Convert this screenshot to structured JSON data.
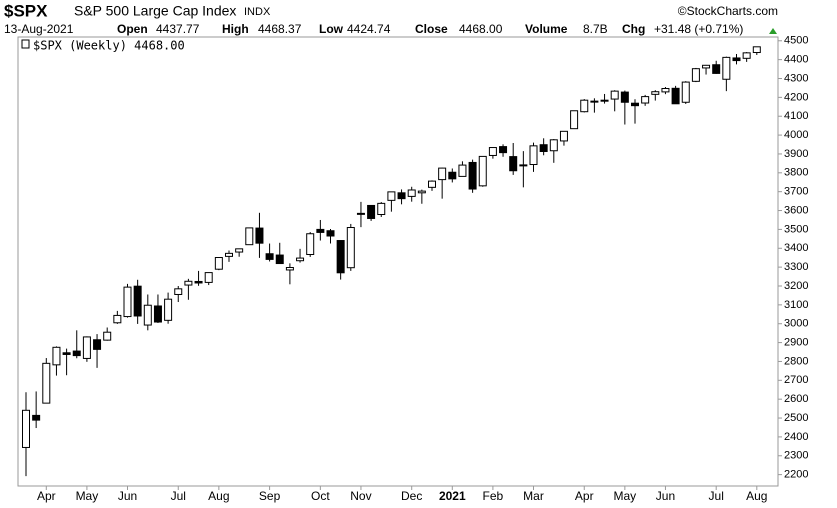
{
  "header": {
    "symbol": "$SPX",
    "name": "S&P 500 Large Cap Index",
    "exchange": "INDX",
    "copyright": "©StockCharts.com",
    "date": "13-Aug-2021",
    "open_label": "Open",
    "open": "4437.77",
    "high_label": "High",
    "high": "4468.37",
    "low_label": "Low",
    "low": "4424.74",
    "close_label": "Close",
    "close": "4468.00",
    "volume_label": "Volume",
    "volume": "8.7B",
    "chg_label": "Chg",
    "chg": "+31.48 (+0.71%)"
  },
  "chart_data": {
    "type": "candlestick",
    "legend": "$SPX (Weekly) 4468.00",
    "categories": [
      null,
      null,
      "Apr",
      null,
      null,
      null,
      "May",
      null,
      null,
      null,
      "Jun",
      null,
      null,
      null,
      null,
      "Jul",
      null,
      null,
      null,
      "Aug",
      null,
      null,
      null,
      null,
      "Sep",
      null,
      null,
      null,
      null,
      "Oct",
      null,
      null,
      null,
      "Nov",
      null,
      null,
      null,
      null,
      "Dec",
      null,
      null,
      null,
      "2021",
      null,
      null,
      null,
      "Feb",
      null,
      null,
      null,
      "Mar",
      null,
      null,
      null,
      null,
      "Apr",
      null,
      null,
      null,
      "May",
      null,
      null,
      null,
      "Jun",
      null,
      null,
      null,
      null,
      "Jul",
      null,
      null,
      null,
      "Aug"
    ],
    "open": [
      2344,
      2514,
      2579,
      2782,
      2846,
      2855,
      2816,
      2915,
      2913,
      3005,
      3038,
      3199,
      2993,
      3094,
      3018,
      3155,
      3205,
      3224,
      3219,
      3289,
      3357,
      3380,
      3419,
      3507,
      3371,
      3364,
      3285,
      3334,
      3367,
      3500,
      3493,
      3441,
      3297,
      3583,
      3627,
      3579,
      3654,
      3694,
      3675,
      3694,
      3723,
      3764,
      3803,
      3781,
      3855,
      3731,
      3892,
      3939,
      3886,
      3842,
      3844,
      3949,
      3917,
      3969,
      4034,
      4124,
      4179,
      4185,
      4191,
      4228,
      4169,
      4170,
      4216,
      4229,
      4248,
      4174,
      4285,
      4356,
      4373,
      4296,
      4409,
      4407,
      4437.77
    ],
    "high": [
      2637,
      2641,
      2818,
      2880,
      2868,
      2965,
      2933,
      2945,
      2980,
      3068,
      3211,
      3233,
      3155,
      3155,
      3165,
      3200,
      3238,
      3280,
      3272,
      3352,
      3388,
      3399,
      3509,
      3588,
      3425,
      3429,
      3320,
      3397,
      3486,
      3550,
      3502,
      3441,
      3529,
      3646,
      3628,
      3645,
      3699,
      3712,
      3726,
      3711,
      3760,
      3827,
      3823,
      3861,
      3870,
      3887,
      3935,
      3951,
      3958,
      3915,
      3960,
      3983,
      3979,
      4020,
      4129,
      4191,
      4195,
      4218,
      4238,
      4236,
      4190,
      4213,
      4238,
      4255,
      4261,
      4286,
      4356,
      4372,
      4394,
      4416,
      4430,
      4440,
      4468.37
    ],
    "low": [
      2192,
      2447,
      2579,
      2725,
      2727,
      2817,
      2798,
      2766,
      2910,
      2999,
      3032,
      2999,
      2965,
      3004,
      3000,
      3115,
      3127,
      3201,
      3205,
      3284,
      3328,
      3355,
      3419,
      3349,
      3330,
      3322,
      3209,
      3324,
      3354,
      3441,
      3425,
      3234,
      3280,
      3512,
      3545,
      3566,
      3594,
      3633,
      3647,
      3636,
      3704,
      3663,
      3749,
      3781,
      3694,
      3726,
      3875,
      3885,
      3789,
      3723,
      3805,
      3893,
      3853,
      3944,
      4034,
      4120,
      4119,
      4167,
      4126,
      4056,
      4061,
      4155,
      4183,
      4217,
      4165,
      4165,
      4281,
      4321,
      4325,
      4233,
      4375,
      4388,
      4424.74
    ],
    "close": [
      2541,
      2489,
      2790,
      2875,
      2837,
      2831,
      2930,
      2864,
      2955,
      3044,
      3194,
      3041,
      3098,
      3009,
      3130,
      3185,
      3225,
      3216,
      3271,
      3351,
      3373,
      3397,
      3508,
      3427,
      3341,
      3319,
      3298,
      3348,
      3477,
      3484,
      3465,
      3270,
      3510,
      3585,
      3558,
      3638,
      3699,
      3663,
      3709,
      3703,
      3756,
      3825,
      3768,
      3841,
      3714,
      3887,
      3934,
      3907,
      3811,
      3842,
      3943,
      3913,
      3975,
      4020,
      4129,
      4185,
      4180,
      4181,
      4233,
      4174,
      4156,
      4204,
      4230,
      4247,
      4166,
      4281,
      4352,
      4370,
      4327,
      4412,
      4395,
      4436,
      4468.0
    ],
    "up_color": "#ffffff",
    "down_color": "#000000",
    "wick_color": "#000000",
    "ylim": [
      2145,
      4520
    ],
    "yticks": [
      2200,
      2300,
      2400,
      2500,
      2600,
      2700,
      2800,
      2900,
      3000,
      3100,
      3200,
      3300,
      3400,
      3500,
      3600,
      3700,
      3800,
      3900,
      4000,
      4100,
      4200,
      4300,
      4400,
      4500
    ],
    "grid": false
  }
}
